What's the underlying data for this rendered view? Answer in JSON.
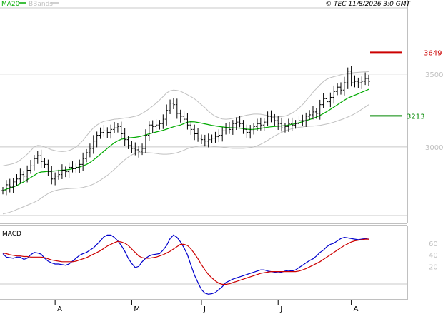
{
  "header": {
    "legend_ma": "MA20",
    "legend_bb": "BBands",
    "timestamp": "© TEC 11/8/2026 3:0 GMT"
  },
  "colors": {
    "price_bar": "#000000",
    "ma20": "#00aa00",
    "bbands": "#c0c0c0",
    "resistance": "#cc0000",
    "support": "#008800",
    "macd_line": "#0000cc",
    "signal_line": "#cc0000",
    "grid": "#c8c8c8"
  },
  "chart_data": [
    {
      "type": "ohlc",
      "panel": "price",
      "ylim": [
        2480,
        3940
      ],
      "y_ticks": [
        3000,
        3500
      ],
      "y_tick_labels": [
        "3000",
        "3500"
      ],
      "levels": [
        {
          "name": "resistance",
          "value": 3649,
          "label": "3649"
        },
        {
          "name": "support",
          "value": 3213,
          "label": "3213"
        }
      ],
      "x_month_labels": [
        "A",
        "M",
        "J",
        "J",
        "A"
      ],
      "x_month_positions": [
        15,
        37,
        57,
        79,
        100
      ],
      "bar_count": 106,
      "closes": [
        2700,
        2740,
        2725,
        2760,
        2780,
        2810,
        2800,
        2840,
        2870,
        2920,
        2940,
        2900,
        2880,
        2830,
        2780,
        2800,
        2810,
        2840,
        2830,
        2860,
        2850,
        2860,
        2880,
        2920,
        2960,
        2990,
        3040,
        3080,
        3100,
        3110,
        3100,
        3120,
        3130,
        3140,
        3090,
        3050,
        3010,
        2990,
        2980,
        2970,
        2990,
        3080,
        3150,
        3140,
        3150,
        3160,
        3190,
        3250,
        3300,
        3290,
        3230,
        3210,
        3190,
        3150,
        3120,
        3090,
        3060,
        3050,
        3040,
        3050,
        3060,
        3070,
        3080,
        3110,
        3130,
        3120,
        3160,
        3170,
        3160,
        3120,
        3100,
        3110,
        3140,
        3160,
        3150,
        3170,
        3210,
        3200,
        3180,
        3160,
        3130,
        3140,
        3160,
        3150,
        3160,
        3180,
        3180,
        3210,
        3220,
        3240,
        3230,
        3290,
        3330,
        3310,
        3340,
        3380,
        3410,
        3390,
        3440,
        3520,
        3440,
        3450,
        3440,
        3450,
        3470,
        3450
      ],
      "ma20": [
        2700,
        2710,
        2718,
        2725,
        2735,
        2748,
        2760,
        2775,
        2790,
        2805,
        2820,
        2828,
        2830,
        2832,
        2833,
        2835,
        2837,
        2840,
        2842,
        2845,
        2850,
        2855,
        2862,
        2870,
        2880,
        2893,
        2910,
        2930,
        2950,
        2970,
        2990,
        3010,
        3028,
        3042,
        3052,
        3058,
        3062,
        3064,
        3066,
        3070,
        3075,
        3082,
        3090,
        3096,
        3102,
        3108,
        3114,
        3122,
        3130,
        3138,
        3145,
        3150,
        3160,
        3170,
        3173,
        3172,
        3168,
        3163,
        3158,
        3153,
        3148,
        3144,
        3140,
        3137,
        3134,
        3132,
        3131,
        3130,
        3128,
        3125,
        3122,
        3120,
        3121,
        3123,
        3127,
        3131,
        3135,
        3138,
        3140,
        3142,
        3144,
        3146,
        3150,
        3155,
        3160,
        3166,
        3173,
        3180,
        3188,
        3196,
        3205,
        3216,
        3229,
        3243,
        3258,
        3273,
        3289,
        3305,
        3320,
        3335,
        3345,
        3355,
        3365,
        3375,
        3385,
        3395
      ],
      "bb_upper": [
        2870,
        2875,
        2880,
        2885,
        2895,
        2910,
        2930,
        2950,
        2975,
        3000,
        3010,
        3008,
        3000,
        2990,
        2980,
        2975,
        2970,
        2968,
        2970,
        2975,
        2985,
        3000,
        3020,
        3045,
        3075,
        3105,
        3130,
        3150,
        3165,
        3175,
        3180,
        3185,
        3190,
        3192,
        3195,
        3198,
        3200,
        3205,
        3210,
        3218,
        3230,
        3245,
        3262,
        3280,
        3300,
        3322,
        3345,
        3370,
        3385,
        3390,
        3388,
        3382,
        3370,
        3358,
        3345,
        3330,
        3310,
        3290,
        3270,
        3245,
        3225,
        3210,
        3200,
        3192,
        3190,
        3192,
        3196,
        3200,
        3205,
        3212,
        3218,
        3222,
        3225,
        3225,
        3224,
        3220,
        3215,
        3210,
        3206,
        3205,
        3208,
        3212,
        3220,
        3232,
        3248,
        3268,
        3290,
        3318,
        3345,
        3375,
        3400,
        3425,
        3448,
        3465,
        3475,
        3482,
        3488,
        3495,
        3500,
        3505,
        3508,
        3510,
        3512,
        3514,
        3515,
        3516
      ],
      "bb_lower": [
        2540,
        2545,
        2552,
        2560,
        2570,
        2580,
        2590,
        2600,
        2610,
        2620,
        2632,
        2648,
        2665,
        2680,
        2692,
        2700,
        2706,
        2710,
        2712,
        2714,
        2715,
        2716,
        2718,
        2722,
        2728,
        2735,
        2745,
        2758,
        2772,
        2788,
        2805,
        2825,
        2845,
        2868,
        2890,
        2912,
        2930,
        2945,
        2955,
        2960,
        2962,
        2962,
        2960,
        2958,
        2955,
        2952,
        2950,
        2950,
        2952,
        2955,
        2960,
        2968,
        2978,
        2988,
        2995,
        3000,
        3005,
        3008,
        3009,
        3008,
        3005,
        3002,
        3000,
        2998,
        2995,
        2992,
        2990,
        2990,
        2990,
        2990,
        2992,
        2995,
        3000,
        3008,
        3018,
        3030,
        3045,
        3060,
        3075,
        3088,
        3100,
        3110,
        3118,
        3125,
        3130,
        3134,
        3137,
        3140,
        3142,
        3143,
        3145,
        3148,
        3152,
        3157,
        3163,
        3170,
        3178,
        3186,
        3195,
        3205,
        3215,
        3228,
        3242,
        3258,
        3274,
        3290
      ]
    },
    {
      "type": "line",
      "panel": "macd",
      "ylim": [
        -35,
        88
      ],
      "y_ticks": [
        20,
        40,
        60
      ],
      "y_tick_labels": [
        "20",
        "40",
        "60"
      ],
      "series": [
        {
          "role": "macd",
          "values": [
            42,
            36,
            35,
            34,
            36,
            36,
            32,
            34,
            40,
            44,
            43,
            41,
            34,
            29,
            26,
            24,
            24,
            23,
            22,
            24,
            29,
            34,
            39,
            42,
            44,
            48,
            52,
            58,
            64,
            71,
            74,
            74,
            70,
            64,
            56,
            46,
            34,
            25,
            18,
            20,
            28,
            34,
            38,
            40,
            41,
            42,
            48,
            56,
            68,
            74,
            70,
            62,
            52,
            40,
            22,
            5,
            -8,
            -20,
            -26,
            -28,
            -27,
            -25,
            -20,
            -15,
            -8,
            -5,
            -2,
            0,
            2,
            4,
            6,
            8,
            10,
            12,
            14,
            14,
            12,
            11,
            10,
            9,
            10,
            12,
            13,
            12,
            14,
            18,
            22,
            26,
            30,
            33,
            38,
            44,
            48,
            54,
            58,
            60,
            64,
            68,
            70,
            69,
            68,
            67,
            66,
            67,
            68,
            67
          ]
        },
        {
          "role": "signal",
          "values": [
            43,
            42,
            40,
            39,
            38,
            38,
            37,
            37,
            36,
            36,
            36,
            36,
            35,
            33,
            31,
            30,
            29,
            28,
            28,
            28,
            28,
            29,
            31,
            33,
            35,
            38,
            41,
            44,
            47,
            51,
            55,
            58,
            61,
            63,
            62,
            60,
            56,
            50,
            44,
            38,
            35,
            34,
            34,
            35,
            36,
            38,
            40,
            43,
            46,
            50,
            54,
            58,
            58,
            56,
            50,
            42,
            33,
            23,
            14,
            6,
            0,
            -5,
            -9,
            -11,
            -11,
            -10,
            -8,
            -6,
            -4,
            -2,
            0,
            2,
            4,
            6,
            8,
            9,
            10,
            11,
            11,
            11,
            11,
            11,
            11,
            11,
            11,
            12,
            14,
            16,
            19,
            22,
            25,
            28,
            32,
            36,
            40,
            44,
            48,
            52,
            56,
            59,
            62,
            64,
            65,
            66,
            67,
            67
          ]
        }
      ]
    }
  ]
}
